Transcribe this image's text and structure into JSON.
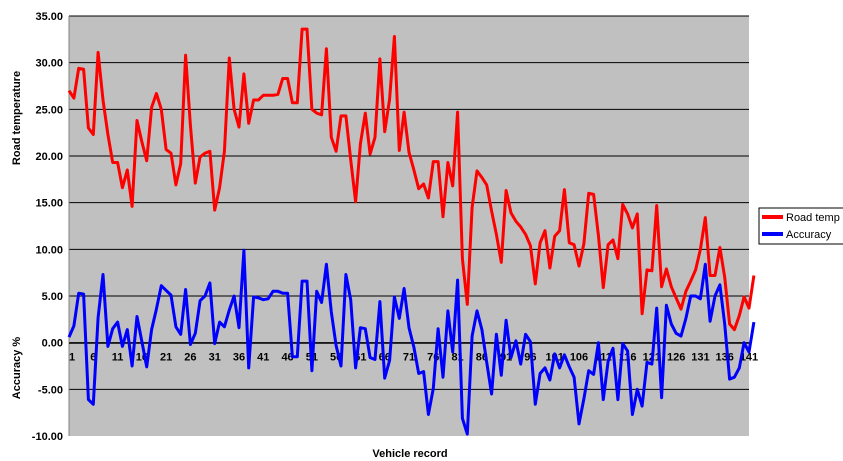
{
  "chart_data": {
    "type": "line",
    "xlabel": "Vehicle record",
    "ylabels": [
      "Road temperature",
      "Accuracy  %"
    ],
    "ylim": [
      -10,
      35
    ],
    "yticks": [
      "-10.00",
      "-5.00",
      "0.00",
      "5.00",
      "10.00",
      "15.00",
      "20.00",
      "25.00",
      "30.00",
      "35.00"
    ],
    "ytick_values": [
      -10,
      -5,
      0,
      5,
      10,
      15,
      20,
      25,
      30,
      35
    ],
    "xtick_labels": [
      "1",
      "6",
      "11",
      "16",
      "21",
      "26",
      "31",
      "36",
      "41",
      "46",
      "51",
      "56",
      "61",
      "66",
      "71",
      "76",
      "81",
      "86",
      "91",
      "96",
      "101",
      "106",
      "111",
      "116",
      "121",
      "126",
      "131",
      "136",
      "141"
    ],
    "xlim": [
      1,
      141
    ],
    "grid": "horizontal",
    "legend_position": "right",
    "background": "#c0c0c0",
    "series": [
      {
        "name": "Road temp",
        "color": "#ff0000",
        "values": [
          27.0,
          26.2,
          29.4,
          29.3,
          23.0,
          22.3,
          31.1,
          26.0,
          22.3,
          19.3,
          19.3,
          16.6,
          18.5,
          14.6,
          23.8,
          21.5,
          19.5,
          25.2,
          26.7,
          25.0,
          20.7,
          20.3,
          16.9,
          19.2,
          30.8,
          23.3,
          17.1,
          19.9,
          20.3,
          20.5,
          14.2,
          16.6,
          20.5,
          30.5,
          25.0,
          23.1,
          28.8,
          23.5,
          26.0,
          26.0,
          26.5,
          26.5,
          26.5,
          26.6,
          28.3,
          28.3,
          25.7,
          25.7,
          33.6,
          33.6,
          25.0,
          24.6,
          24.4,
          31.5,
          22.0,
          20.5,
          24.3,
          24.3,
          19.6,
          15.1,
          21.3,
          24.6,
          20.2,
          22.0,
          30.4,
          22.6,
          26.1,
          32.8,
          20.6,
          24.7,
          20.4,
          18.5,
          16.5,
          17.0,
          15.5,
          19.4,
          19.4,
          13.5,
          19.3,
          16.8,
          24.7,
          9.0,
          4.1,
          14.5,
          18.4,
          17.7,
          16.9,
          14.1,
          11.6,
          8.6,
          16.3,
          13.9,
          13.0,
          12.4,
          11.6,
          10.4,
          6.3,
          10.7,
          12.0,
          8.0,
          11.4,
          12.0,
          16.4,
          10.7,
          10.5,
          8.2,
          10.6,
          16.0,
          15.9,
          11.5,
          5.9,
          10.5,
          11.0,
          9.0,
          14.8,
          13.8,
          12.3,
          13.8,
          3.1,
          7.8,
          7.7,
          14.7,
          6.0,
          7.9,
          6.0,
          4.8,
          3.6,
          5.5,
          6.6,
          7.8,
          10.0,
          13.4,
          7.2,
          7.2,
          10.2,
          7.0,
          2.0,
          1.4,
          2.9,
          4.9,
          3.7,
          7.2
        ]
      },
      {
        "name": "Accuracy",
        "color": "#0000ff",
        "values": [
          0.6,
          1.8,
          5.3,
          5.2,
          -6.1,
          -6.6,
          2.7,
          7.3,
          -0.4,
          1.5,
          2.2,
          -0.4,
          1.4,
          -2.5,
          2.8,
          0.1,
          -2.6,
          1.4,
          3.6,
          6.1,
          5.6,
          5.1,
          1.7,
          0.9,
          5.7,
          -0.2,
          1.0,
          4.5,
          5.0,
          6.4,
          -0.1,
          2.2,
          1.7,
          3.5,
          5.0,
          1.6,
          9.9,
          -2.7,
          4.9,
          4.8,
          4.6,
          4.7,
          5.5,
          5.5,
          5.3,
          5.3,
          -1.5,
          -1.5,
          6.6,
          6.6,
          -3.0,
          5.5,
          4.3,
          8.4,
          3.3,
          -0.3,
          -2.5,
          7.3,
          4.6,
          -2.7,
          1.6,
          1.5,
          -1.6,
          -1.8,
          4.4,
          -3.8,
          -1.9,
          4.9,
          2.6,
          5.8,
          1.6,
          -0.5,
          -3.3,
          -3.1,
          -7.7,
          -4.9,
          1.5,
          -3.7,
          3.4,
          -1.0,
          6.7,
          -8.1,
          -9.8,
          0.7,
          3.4,
          1.4,
          -2.1,
          -5.5,
          0.9,
          -3.5,
          2.4,
          -1.6,
          0.2,
          -2.3,
          0.9,
          0.1,
          -6.6,
          -3.3,
          -2.7,
          -4.0,
          -1.2,
          -2.7,
          -1.3,
          -2.6,
          -3.7,
          -8.7,
          -6.0,
          -3.0,
          -3.4,
          0.0,
          -6.1,
          -2.0,
          -0.6,
          -6.1,
          -0.1,
          -0.9,
          -7.7,
          -5.0,
          -6.8,
          -2.1,
          -2.3,
          3.7,
          -5.9,
          4.0,
          2.0,
          1.0,
          0.7,
          2.6,
          5.0,
          5.0,
          4.7,
          8.4,
          2.3,
          5.0,
          6.2,
          2.0,
          -3.9,
          -3.7,
          -2.7,
          0.0,
          -1.0,
          2.2
        ]
      }
    ]
  }
}
